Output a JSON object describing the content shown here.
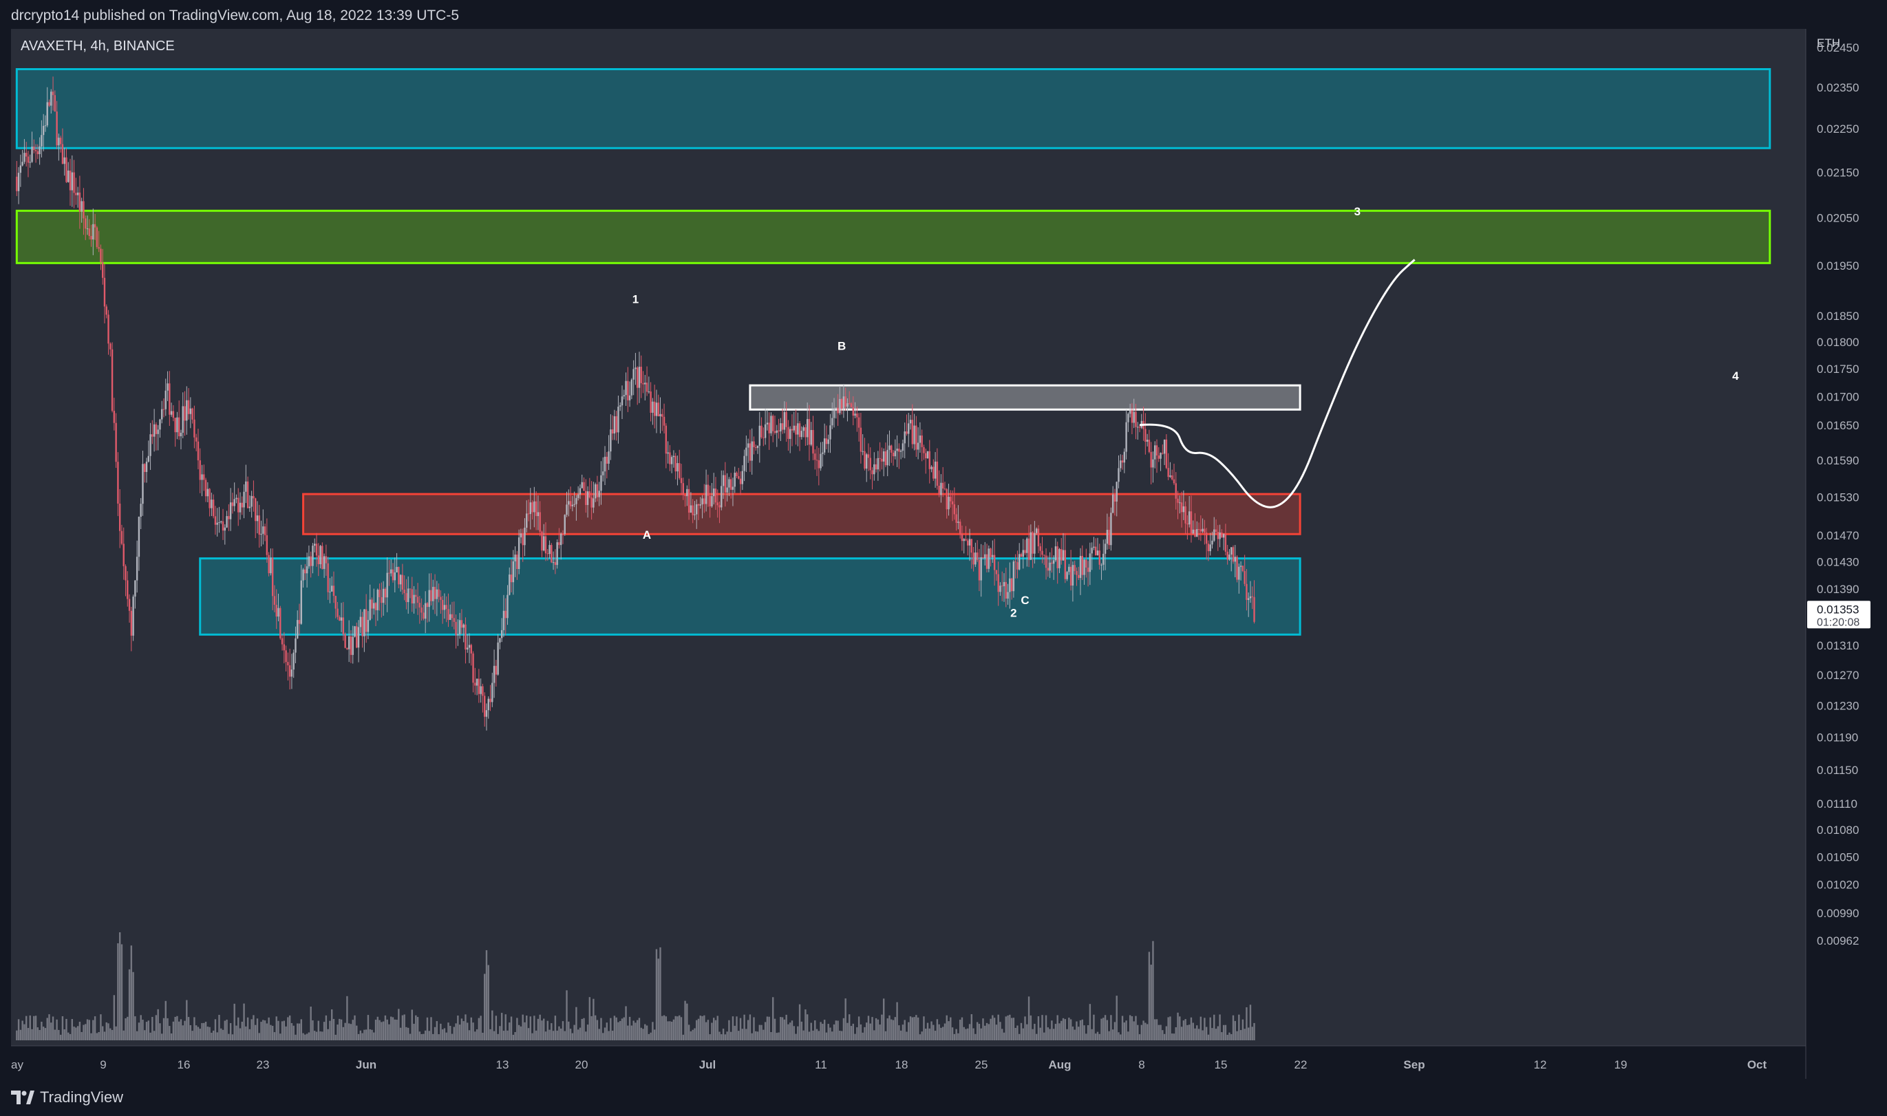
{
  "header": {
    "publisher": "drcrypto14 published on TradingView.com, Aug 18, 2022 13:39 UTC-5"
  },
  "symbol": "AVAXETH, 4h, BINANCE",
  "footer": {
    "brand": "TradingView"
  },
  "colors": {
    "background": "#2a2e39",
    "axis_background": "#131722",
    "cyan_zone": "#00bcd4",
    "green_zone": "#76ff03",
    "red_zone": "#f44336",
    "white_zone": "#ffffff",
    "candles": "#b2b5be",
    "candles_down": "#e05a6a"
  },
  "chart_data": {
    "type": "candlestick",
    "axis_unit": "ETH",
    "y_ticks": [
      "0.02450",
      "0.02350",
      "0.02250",
      "0.02150",
      "0.02050",
      "0.01950",
      "0.01850",
      "0.01800",
      "0.01750",
      "0.01700",
      "0.01650",
      "0.01590",
      "0.01530",
      "0.01470",
      "0.01430",
      "0.01390",
      "0.01310",
      "0.01270",
      "0.01230",
      "0.01190",
      "0.01150",
      "0.01110",
      "0.01080",
      "0.01050",
      "0.01020",
      "0.00990",
      "0.00962"
    ],
    "x_ticks": [
      "ay",
      "9",
      "16",
      "23",
      "Jun",
      "13",
      "20",
      "Jul",
      "11",
      "18",
      "25",
      "Aug",
      "8",
      "15",
      "22",
      "Sep",
      "12",
      "19",
      "Oct"
    ],
    "last_price": "0.01353",
    "countdown": "01:20:08",
    "zones": [
      {
        "name": "upper cyan resistance",
        "color": "cyan",
        "y_top": 0.02395,
        "y_bottom": 0.02205,
        "x_start": "May 2",
        "x_end": "Oct 2"
      },
      {
        "name": "green target zone",
        "color": "green",
        "y_top": 0.02065,
        "y_bottom": 0.01955,
        "x_start": "May 2",
        "x_end": "Oct 2"
      },
      {
        "name": "white box",
        "color": "white",
        "y_top": 0.0172,
        "y_bottom": 0.01677,
        "x_start": "Jul 5",
        "x_end": "Aug 22"
      },
      {
        "name": "red zone",
        "color": "red",
        "y_top": 0.01535,
        "y_bottom": 0.01472,
        "x_start": "May 27",
        "x_end": "Aug 22"
      },
      {
        "name": "lower cyan support",
        "color": "cyan",
        "y_top": 0.01435,
        "y_bottom": 0.01325,
        "x_start": "May 18",
        "x_end": "Aug 22"
      }
    ],
    "annotations": [
      {
        "label": "1",
        "date": "Jun 25",
        "price": 0.01875
      },
      {
        "label": "B",
        "date": "Jul 13",
        "price": 0.01785
      },
      {
        "label": "A",
        "date": "Jun 26",
        "price": 0.01465
      },
      {
        "label": "C",
        "date": "Jul 29",
        "price": 0.01368
      },
      {
        "label": "2",
        "date": "Jul 28",
        "price": 0.0135
      },
      {
        "label": "3",
        "date": "Aug 27",
        "price": 0.02055
      },
      {
        "label": "4",
        "date": "Sep 29",
        "price": 0.0173
      }
    ],
    "price_path": [
      [
        "May 2",
        0.0214
      ],
      [
        "May 4",
        0.0222
      ],
      [
        "May 5",
        0.0233
      ],
      [
        "May 6",
        0.0216
      ],
      [
        "May 7",
        0.0212
      ],
      [
        "May 8",
        0.0203
      ],
      [
        "May 9",
        0.0201
      ],
      [
        "May 10",
        0.0182
      ],
      [
        "May 11",
        0.0146
      ],
      [
        "May 12",
        0.0132
      ],
      [
        "May 13",
        0.0158
      ],
      [
        "May 14",
        0.0164
      ],
      [
        "May 15",
        0.0171
      ],
      [
        "May 16",
        0.0165
      ],
      [
        "May 17",
        0.0168
      ],
      [
        "May 18",
        0.0157
      ],
      [
        "May 19",
        0.0152
      ],
      [
        "May 20",
        0.0146
      ],
      [
        "May 21",
        0.0152
      ],
      [
        "May 22",
        0.0154
      ],
      [
        "May 23",
        0.015
      ],
      [
        "May 24",
        0.0143
      ],
      [
        "May 25",
        0.0134
      ],
      [
        "May 26",
        0.0126
      ],
      [
        "May 27",
        0.0141
      ],
      [
        "May 28",
        0.0146
      ],
      [
        "May 29",
        0.0141
      ],
      [
        "May 30",
        0.0135
      ],
      [
        "May 31",
        0.0131
      ],
      [
        "Jun 2",
        0.0136
      ],
      [
        "Jun 4",
        0.0142
      ],
      [
        "Jun 6",
        0.0136
      ],
      [
        "Jun 8",
        0.0138
      ],
      [
        "Jun 10",
        0.0132
      ],
      [
        "Jun 11",
        0.0127
      ],
      [
        "Jun 12",
        0.0121
      ],
      [
        "Jun 13",
        0.013
      ],
      [
        "Jun 14",
        0.014
      ],
      [
        "Jun 15",
        0.0146
      ],
      [
        "Jun 16",
        0.0151
      ],
      [
        "Jun 17",
        0.0146
      ],
      [
        "Jun 18",
        0.0144
      ],
      [
        "Jun 19",
        0.015
      ],
      [
        "Jun 20",
        0.0155
      ],
      [
        "Jun 21",
        0.0152
      ],
      [
        "Jun 22",
        0.0157
      ],
      [
        "Jun 23",
        0.0163
      ],
      [
        "Jun 24",
        0.017
      ],
      [
        "Jun 25",
        0.0174
      ],
      [
        "Jun 26",
        0.0171
      ],
      [
        "Jun 27",
        0.0167
      ],
      [
        "Jun 28",
        0.016
      ],
      [
        "Jun 29",
        0.0156
      ],
      [
        "Jun 30",
        0.0151
      ],
      [
        "Jul 1",
        0.0153
      ],
      [
        "Jul 2",
        0.0152
      ],
      [
        "Jul 3",
        0.0156
      ],
      [
        "Jul 4",
        0.0155
      ],
      [
        "Jul 5",
        0.0161
      ],
      [
        "Jul 6",
        0.0165
      ],
      [
        "Jul 7",
        0.0166
      ],
      [
        "Jul 8",
        0.0166
      ],
      [
        "Jul 9",
        0.0163
      ],
      [
        "Jul 10",
        0.0164
      ],
      [
        "Jul 11",
        0.016
      ],
      [
        "Jul 12",
        0.0166
      ],
      [
        "Jul 13",
        0.017
      ],
      [
        "Jul 14",
        0.0168
      ],
      [
        "Jul 15",
        0.016
      ],
      [
        "Jul 16",
        0.0157
      ],
      [
        "Jul 17",
        0.0161
      ],
      [
        "Jul 18",
        0.0159
      ],
      [
        "Jul 19",
        0.0165
      ],
      [
        "Jul 20",
        0.016
      ],
      [
        "Jul 21",
        0.0157
      ],
      [
        "Jul 22",
        0.0154
      ],
      [
        "Jul 23",
        0.015
      ],
      [
        "Jul 24",
        0.0146
      ],
      [
        "Jul 25",
        0.0142
      ],
      [
        "Jul 26",
        0.0144
      ],
      [
        "Jul 27",
        0.0139
      ],
      [
        "Jul 28",
        0.0141
      ],
      [
        "Jul 29",
        0.0144
      ],
      [
        "Jul 30",
        0.0147
      ],
      [
        "Jul 31",
        0.0142
      ],
      [
        "Aug 1",
        0.0144
      ],
      [
        "Aug 2",
        0.0141
      ],
      [
        "Aug 3",
        0.0143
      ],
      [
        "Aug 4",
        0.0144
      ],
      [
        "Aug 5",
        0.0144
      ],
      [
        "Aug 6",
        0.0155
      ],
      [
        "Aug 7",
        0.0166
      ],
      [
        "Aug 8",
        0.0165
      ],
      [
        "Aug 9",
        0.0159
      ],
      [
        "Aug 10",
        0.0162
      ],
      [
        "Aug 11",
        0.0154
      ],
      [
        "Aug 12",
        0.0151
      ],
      [
        "Aug 13",
        0.0148
      ],
      [
        "Aug 14",
        0.0146
      ],
      [
        "Aug 15",
        0.0146
      ],
      [
        "Aug 16",
        0.0144
      ],
      [
        "Aug 17",
        0.014
      ],
      [
        "Aug 18",
        0.0135
      ]
    ],
    "projection_path": [
      [
        "Aug 8",
        0.0165
      ],
      [
        "Aug 11",
        0.01655
      ],
      [
        "Aug 12",
        0.016
      ],
      [
        "Aug 14",
        0.01605
      ],
      [
        "Aug 16",
        0.0157
      ],
      [
        "Aug 18",
        0.0152
      ],
      [
        "Aug 20",
        0.0151
      ],
      [
        "Aug 22",
        0.0155
      ],
      [
        "Aug 24",
        0.0165
      ],
      [
        "Aug 27",
        0.018
      ],
      [
        "Aug 30",
        0.0192
      ],
      [
        "Sep 1",
        0.01962
      ]
    ],
    "volume_spike_dates": [
      "May 11",
      "May 12",
      "Jun 12",
      "Jun 27",
      "Aug 9"
    ]
  }
}
